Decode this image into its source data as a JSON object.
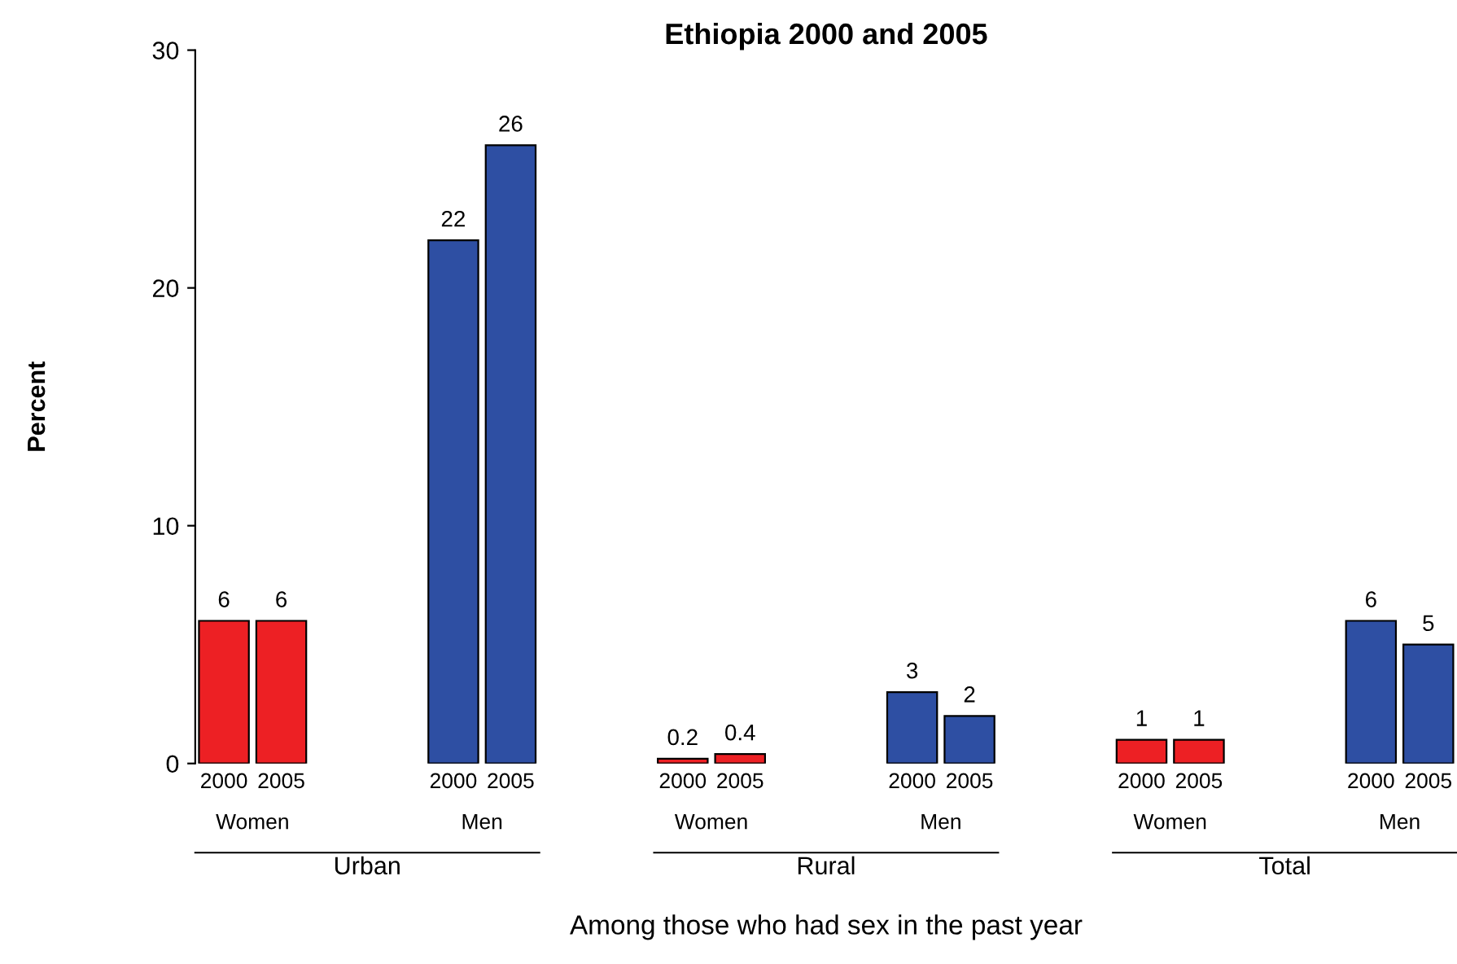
{
  "chart_data": {
    "type": "bar",
    "title": "Ethiopia 2000 and 2005",
    "ylabel": "Percent",
    "categories": [
      "2000",
      "2005",
      null,
      null,
      "2000",
      "2005",
      null,
      null,
      "2000",
      "2005",
      null,
      null,
      "2000",
      "2005",
      null,
      null,
      "2000",
      "2005",
      null,
      null,
      "2000",
      "2005"
    ],
    "values": [
      6,
      6,
      null,
      null,
      22,
      26,
      null,
      null,
      0.2,
      0.4,
      null,
      null,
      3,
      2,
      null,
      null,
      1,
      1,
      null,
      null,
      6,
      5
    ],
    "colors": [
      "#ed2024",
      "#ed2024",
      null,
      null,
      "#2e4fa3",
      "#2e4fa3",
      null,
      null,
      "#ed2024",
      "#ed2024",
      null,
      null,
      "#2e4fa3",
      "#2e4fa3",
      null,
      null,
      "#ed2024",
      "#ed2024",
      null,
      null,
      "#2e4fa3",
      "#2e4fa3"
    ],
    "ylim": [
      0,
      30
    ],
    "yticks": [
      0,
      10,
      20,
      30
    ],
    "data_labels": true,
    "grid": false,
    "annotations": [
      "Women",
      "Men",
      "Women",
      "Men",
      "Women",
      "Men",
      "Urban",
      "Rural",
      "Total",
      "Among those who had sex in the past year"
    ]
  }
}
